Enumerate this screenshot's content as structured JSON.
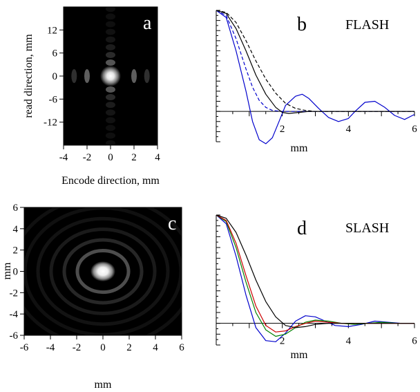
{
  "chart_data": [
    {
      "id": "a",
      "type": "heatmap",
      "panel_label": "a",
      "xlabel": "Encode direction, mm",
      "ylabel": "read direction, mm",
      "xlim": [
        -4,
        4
      ],
      "ylim": [
        -18,
        18
      ],
      "xticks": [
        -4,
        -2,
        0,
        2,
        4
      ],
      "yticks": [
        -12,
        -6,
        0,
        6,
        12
      ],
      "pattern": "separable-sinc-cross",
      "colormap": "gray"
    },
    {
      "id": "b",
      "type": "line",
      "panel_label": "b",
      "title": "FLASH",
      "xlabel": "mm",
      "xlim": [
        0,
        6
      ],
      "ylim": [
        -0.3,
        1.0
      ],
      "xticks": [
        2,
        4,
        6
      ],
      "series": [
        {
          "color": "#0000cc",
          "dash": "solid",
          "x": [
            0,
            0.3,
            0.6,
            0.9,
            1.1,
            1.3,
            1.5,
            1.7,
            1.9,
            2.1,
            2.4,
            2.6,
            2.8,
            3.1,
            3.4,
            3.7,
            4.0,
            4.2,
            4.5,
            4.8,
            5.1,
            5.4,
            5.7,
            6.0
          ],
          "y": [
            1.0,
            0.93,
            0.6,
            0.2,
            -0.1,
            -0.28,
            -0.32,
            -0.26,
            -0.1,
            0.06,
            0.15,
            0.17,
            0.13,
            0.03,
            -0.06,
            -0.1,
            -0.07,
            0.0,
            0.09,
            0.1,
            0.04,
            -0.04,
            -0.08,
            -0.03
          ]
        },
        {
          "color": "#0000cc",
          "dash": "dashed",
          "x": [
            0,
            0.3,
            0.6,
            0.9,
            1.1,
            1.3,
            1.5,
            1.7,
            2.0,
            2.3,
            2.6,
            3.0,
            3.5,
            4.0,
            5.0,
            6.0
          ],
          "y": [
            1.0,
            0.95,
            0.72,
            0.42,
            0.24,
            0.11,
            0.04,
            0.01,
            0.0,
            0.0,
            0.0,
            0.0,
            0.0,
            0.0,
            0.0,
            0.0
          ]
        },
        {
          "color": "#000000",
          "dash": "solid",
          "x": [
            0,
            0.3,
            0.6,
            0.9,
            1.2,
            1.5,
            1.8,
            2.0,
            2.2,
            2.5,
            2.8,
            3.2,
            3.6,
            4.0,
            5.0,
            6.0
          ],
          "y": [
            1.0,
            0.97,
            0.82,
            0.6,
            0.36,
            0.17,
            0.04,
            -0.01,
            -0.02,
            -0.01,
            0.0,
            0.0,
            0.0,
            0.0,
            0.0,
            0.0
          ]
        },
        {
          "color": "#000000",
          "dash": "dashed",
          "x": [
            0,
            0.3,
            0.6,
            0.9,
            1.2,
            1.5,
            1.8,
            2.1,
            2.4,
            2.7,
            3.0,
            3.3,
            3.7,
            4.0,
            5.0,
            6.0
          ],
          "y": [
            1.0,
            0.98,
            0.88,
            0.7,
            0.5,
            0.32,
            0.18,
            0.08,
            0.03,
            0.01,
            0.0,
            0.0,
            0.0,
            0.0,
            0.0,
            0.0
          ]
        }
      ]
    },
    {
      "id": "c",
      "type": "heatmap",
      "panel_label": "c",
      "xlabel": "mm",
      "ylabel": "mm",
      "xlim": [
        -6,
        6
      ],
      "ylim": [
        -6,
        6
      ],
      "xticks": [
        -6,
        -4,
        -2,
        0,
        2,
        4,
        6
      ],
      "yticks": [
        -6,
        -4,
        -2,
        0,
        2,
        4,
        6
      ],
      "pattern": "radial-airy",
      "colormap": "gray"
    },
    {
      "id": "d",
      "type": "line",
      "panel_label": "d",
      "title": "SLASH",
      "xlabel": "mm",
      "xlim": [
        0,
        6
      ],
      "ylim": [
        -0.2,
        1.0
      ],
      "xticks": [
        2,
        4,
        6
      ],
      "series": [
        {
          "color": "#0000cc",
          "dash": "solid",
          "x": [
            0,
            0.3,
            0.6,
            0.9,
            1.2,
            1.5,
            1.8,
            2.1,
            2.4,
            2.7,
            3.0,
            3.3,
            3.6,
            4.0,
            4.4,
            4.8,
            5.2,
            5.6,
            6.0
          ],
          "y": [
            1.0,
            0.92,
            0.62,
            0.26,
            -0.04,
            -0.16,
            -0.17,
            -0.09,
            0.02,
            0.07,
            0.06,
            0.02,
            -0.02,
            -0.03,
            -0.01,
            0.02,
            0.01,
            0.0,
            0.0
          ]
        },
        {
          "color": "#008000",
          "dash": "solid",
          "x": [
            0,
            0.3,
            0.6,
            0.9,
            1.2,
            1.5,
            1.8,
            2.1,
            2.4,
            2.7,
            3.0,
            3.4,
            3.8,
            4.2,
            4.6,
            5.0,
            5.5,
            6.0
          ],
          "y": [
            1.0,
            0.94,
            0.7,
            0.38,
            0.1,
            -0.06,
            -0.12,
            -0.1,
            -0.04,
            0.01,
            0.03,
            0.02,
            0.0,
            -0.01,
            0.0,
            0.01,
            0.0,
            0.0
          ]
        },
        {
          "color": "#cc0000",
          "dash": "solid",
          "x": [
            0,
            0.3,
            0.6,
            0.9,
            1.2,
            1.5,
            1.8,
            2.1,
            2.4,
            2.7,
            3.0,
            3.4,
            3.8,
            4.2,
            4.6,
            5.0,
            5.5,
            6.0
          ],
          "y": [
            1.0,
            0.95,
            0.74,
            0.44,
            0.16,
            -0.02,
            -0.08,
            -0.07,
            -0.03,
            0.0,
            0.02,
            0.01,
            0.0,
            0.0,
            0.0,
            0.0,
            0.0,
            0.0
          ]
        },
        {
          "color": "#000000",
          "dash": "solid",
          "x": [
            0,
            0.3,
            0.6,
            0.9,
            1.2,
            1.5,
            1.8,
            2.1,
            2.4,
            2.7,
            3.0,
            3.4,
            3.8,
            4.2,
            5.0,
            6.0
          ],
          "y": [
            1.0,
            0.97,
            0.84,
            0.63,
            0.4,
            0.2,
            0.06,
            -0.02,
            -0.04,
            -0.03,
            -0.01,
            0.0,
            0.0,
            0.0,
            0.0,
            0.0
          ]
        }
      ]
    }
  ]
}
